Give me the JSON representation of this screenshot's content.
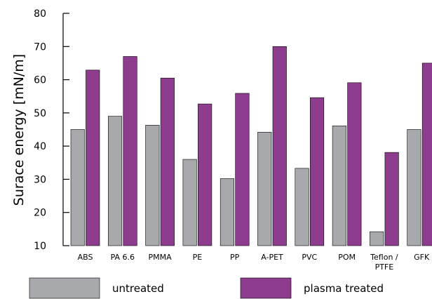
{
  "chart_data": {
    "type": "bar",
    "title": "",
    "xlabel": "",
    "ylabel": "Surace energy [mN/m]",
    "ylim": [
      10,
      80
    ],
    "yticks": [
      10,
      20,
      30,
      40,
      50,
      60,
      70,
      80
    ],
    "grid": false,
    "legend_position": "bottom",
    "categories": [
      [
        "ABS"
      ],
      [
        "PA 6.6"
      ],
      [
        "PMMA"
      ],
      [
        "PE"
      ],
      [
        "PP"
      ],
      [
        "A-PET"
      ],
      [
        "PVC"
      ],
      [
        "POM"
      ],
      [
        "Teflon /",
        "PTFE"
      ],
      [
        "GFK"
      ]
    ],
    "series": [
      {
        "name": "untreated",
        "color": "#a7a9ac",
        "values": [
          45,
          49,
          46.3,
          36,
          30.2,
          44.2,
          33.3,
          46.1,
          14.2,
          45
        ]
      },
      {
        "name": "plasma treated",
        "color": "#8e3d8e",
        "values": [
          62.9,
          67,
          60.5,
          52.7,
          55.9,
          70,
          54.6,
          59.1,
          38.1,
          65
        ]
      }
    ]
  }
}
